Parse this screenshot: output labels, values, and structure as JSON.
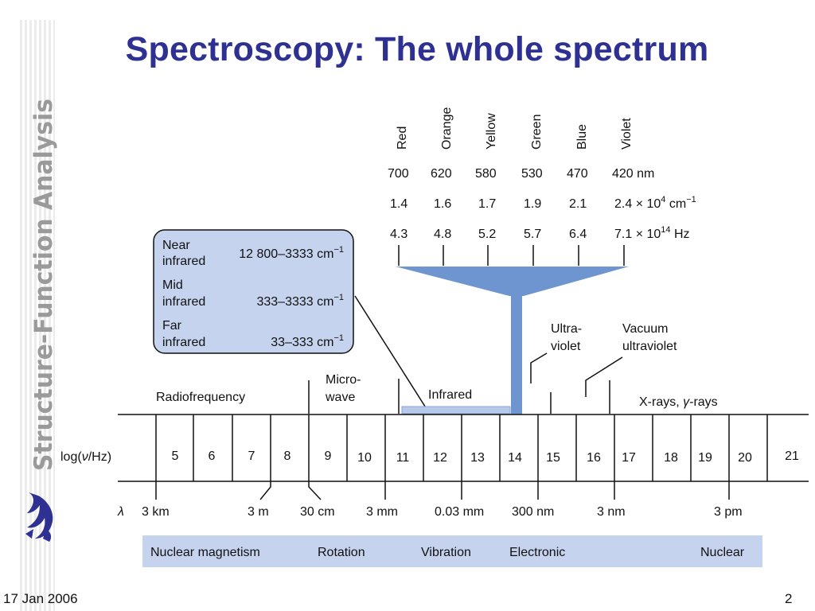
{
  "slide": {
    "title": "Spectroscopy: The whole spectrum",
    "sidebar_text": "Structure-Function Analysis",
    "date": "17 Jan 2006",
    "page_number": "2",
    "logo_icon": "university-crest-icon"
  },
  "colors": {
    "title": "#2e3192",
    "sidebar_text": "#9a9a9a",
    "funnel": "#6e95cf",
    "callout_fill": "#c6d3ee",
    "bar_fill": "#c6d3ee",
    "infrared_bar": "#b7c9e8"
  },
  "visible": {
    "colors": [
      "Red",
      "Orange",
      "Yellow",
      "Green",
      "Blue",
      "Violet"
    ],
    "wavelengths": [
      "700",
      "620",
      "580",
      "530",
      "470",
      "420 nm"
    ],
    "wavenumbers": [
      "1.4",
      "1.6",
      "1.7",
      "1.9",
      "2.1"
    ],
    "wavenumber_last": "2.4 × 10",
    "wavenumber_exp": "4",
    "wavenumber_unit": " cm",
    "wavenumber_unit_exp": "−1",
    "frequencies": [
      "4.3",
      "4.8",
      "5.2",
      "5.7",
      "6.4"
    ],
    "frequency_last": "7.1 × 10",
    "frequency_exp": "14",
    "frequency_unit": " Hz"
  },
  "infrared_callout": {
    "near_label_1": "Near",
    "near_label_2": "infrared",
    "near_range": "12 800–3333 cm",
    "mid_label_1": "Mid",
    "mid_label_2": "infrared",
    "mid_range": "333–3333 cm",
    "far_label_1": "Far",
    "far_label_2": "infrared",
    "far_range": "33–333 cm",
    "unit_exp": "−1"
  },
  "regions": {
    "radiofrequency": "Radiofrequency",
    "microwave_1": "Micro-",
    "microwave_2": "wave",
    "infrared": "Infrared",
    "uv_1": "Ultra-",
    "uv_2": "violet",
    "vuv_1": "Vacuum",
    "vuv_2": "ultraviolet",
    "xray": "X-rays, ",
    "gamma_symbol": "γ",
    "gamma_suffix": "-rays"
  },
  "scale": {
    "label_prefix": "log(",
    "label_nu": "ν",
    "label_suffix": "/Hz)",
    "ticks": [
      "5",
      "6",
      "7",
      "8",
      "9",
      "10",
      "11",
      "12",
      "13",
      "14",
      "15",
      "16",
      "17",
      "18",
      "19",
      "20",
      "21"
    ]
  },
  "wavelength_row": {
    "symbol": "λ",
    "values": [
      "3 km",
      "3 m",
      "30 cm",
      "3 mm",
      "0.03 mm",
      "300 nm",
      "3 nm",
      "3 pm"
    ]
  },
  "processes": [
    "Nuclear magnetism",
    "Rotation",
    "Vibration",
    "Electronic",
    "Nuclear"
  ]
}
